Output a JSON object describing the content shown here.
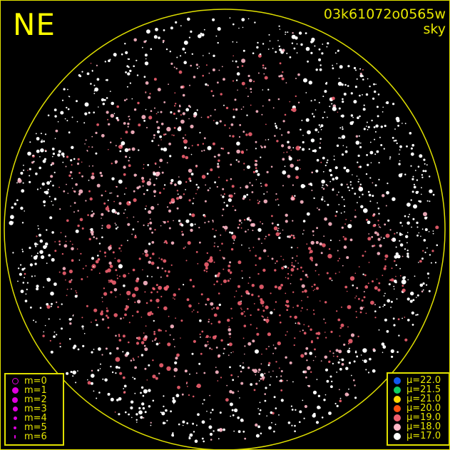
{
  "direction_label": "NE",
  "image_id": "03k61072o0565w",
  "image_type": "sky",
  "horizon_color": "#e0e000",
  "magnitude_legend": [
    {
      "label": "m=0",
      "hollow": true
    },
    {
      "label": "m=1"
    },
    {
      "label": "m=2"
    },
    {
      "label": "m=3"
    },
    {
      "label": "m=4"
    },
    {
      "label": "m=5"
    },
    {
      "label": "m=6"
    }
  ],
  "magnitude_marker_color": "#e000e0",
  "brightness_legend": [
    {
      "label": "μ=22.0",
      "color": "#1058f0"
    },
    {
      "label": "μ=21.5",
      "color": "#10d060"
    },
    {
      "label": "μ=21.0",
      "color": "#ffd800"
    },
    {
      "label": "μ=20.0",
      "color": "#ff5010"
    },
    {
      "label": "μ=19.0",
      "color": "#f06070"
    },
    {
      "label": "μ=18.0",
      "color": "#ffb8c8"
    },
    {
      "label": "μ=17.0",
      "color": "#ffffff"
    }
  ]
}
